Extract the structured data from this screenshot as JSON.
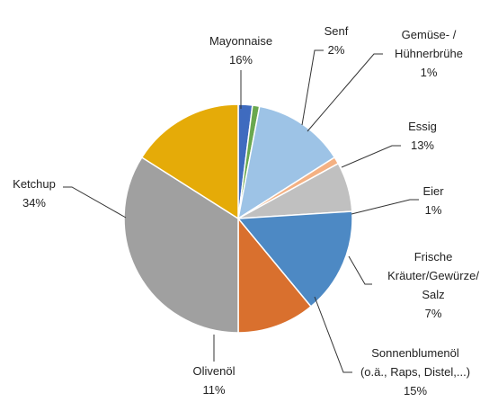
{
  "chart_data": {
    "type": "pie",
    "categories": [
      "Senf",
      "Gemüse- /\nHühnerbrühe",
      "Essig",
      "Eier",
      "Frische\nKräuter/Gewürze/\nSalz",
      "Sonnenblumenöl\n(o.ä., Raps, Distel,...)",
      "Olivenöl",
      "Ketchup",
      "Mayonnaise"
    ],
    "values": [
      2,
      1,
      13,
      1,
      7,
      15,
      11,
      34,
      16
    ],
    "value_labels": [
      "2%",
      "1%",
      "13%",
      "1%",
      "7%",
      "15%",
      "11%",
      "34%",
      "16%"
    ],
    "colors": [
      "#3f6bbf",
      "#6aa84f",
      "#9dc3e6",
      "#f4b183",
      "#c0c0c0",
      "#4d89c4",
      "#d9702e",
      "#a0a0a0",
      "#e5ab08"
    ]
  }
}
